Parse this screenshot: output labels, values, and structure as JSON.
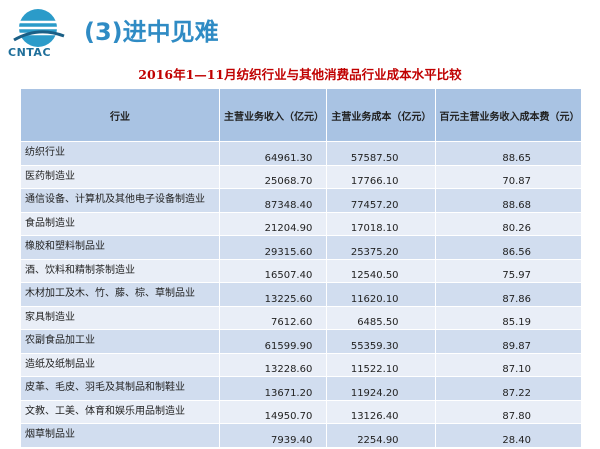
{
  "header": {
    "logo_text": "CNTAC",
    "title": "(3)进中见难"
  },
  "table": {
    "title": "2016年1—11月纺织行业与其他消费品行业成本水平比较",
    "columns": [
      "行业",
      "主营业务收入（亿元）",
      "主营业务成本（亿元）",
      "百元主营业务收入成本费（元）"
    ],
    "rows": [
      [
        "纺织行业",
        "64961.30",
        "57587.50",
        "88.65"
      ],
      [
        "医药制造业",
        "25068.70",
        "17766.10",
        "70.87"
      ],
      [
        "通信设备、计算机及其他电子设备制造业",
        "87348.40",
        "77457.20",
        "88.68"
      ],
      [
        "食品制造业",
        "21204.90",
        "17018.10",
        "80.26"
      ],
      [
        "橡胶和塑料制品业",
        "29315.60",
        "25375.20",
        "86.56"
      ],
      [
        "酒、饮料和精制茶制造业",
        "16507.40",
        "12540.50",
        "75.97"
      ],
      [
        "木材加工及木、竹、藤、棕、草制品业",
        "13225.60",
        "11620.10",
        "87.86"
      ],
      [
        "家具制造业",
        "7612.60",
        "6485.50",
        "85.19"
      ],
      [
        "农副食品加工业",
        "61599.90",
        "55359.30",
        "89.87"
      ],
      [
        "造纸及纸制品业",
        "13228.60",
        "11522.10",
        "87.10"
      ],
      [
        "皮革、毛皮、羽毛及其制品和制鞋业",
        "13671.20",
        "11924.20",
        "87.22"
      ],
      [
        "文教、工美、体育和娱乐用品制造业",
        "14950.70",
        "13126.40",
        "87.80"
      ],
      [
        "烟草制品业",
        "7939.40",
        "2254.90",
        "28.40"
      ]
    ]
  }
}
